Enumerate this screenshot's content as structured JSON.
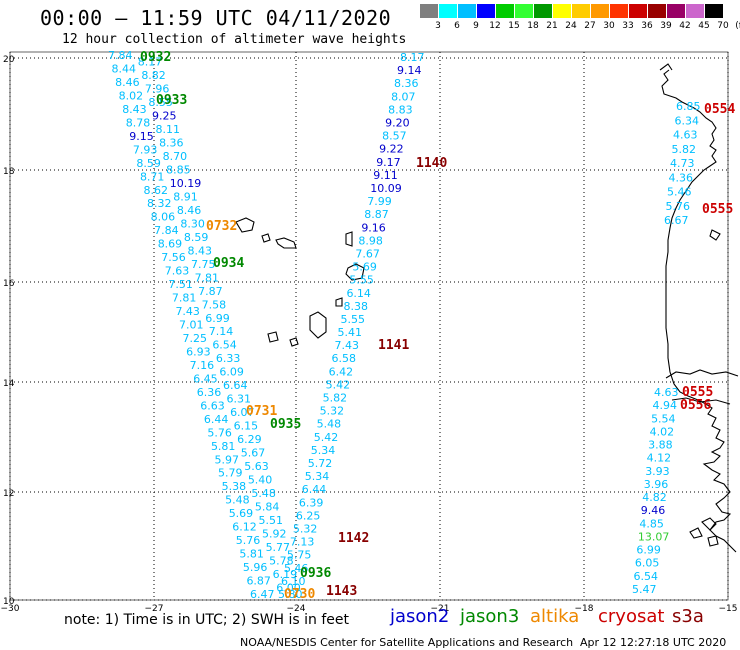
{
  "header": {
    "title": "00:00 – 11:59 UTC 04/11/2020",
    "subtitle": "12 hour collection of altimeter wave heights"
  },
  "colorbar": {
    "labels": [
      "3",
      "6",
      "9",
      "12",
      "15",
      "18",
      "21",
      "24",
      "27",
      "30",
      "33",
      "36",
      "39",
      "42",
      "45",
      "70",
      "(ft)"
    ],
    "colors": [
      "#7f7f7f",
      "#00ffff",
      "#00bfff",
      "#0000ff",
      "#00cc00",
      "#33ff33",
      "#009900",
      "#ffff00",
      "#ffcc00",
      "#ff9900",
      "#ff3300",
      "#cc0000",
      "#990000",
      "#990066",
      "#cc66cc",
      "#000000"
    ]
  },
  "axes": {
    "lat_labels": [
      "20",
      "18",
      "16",
      "14",
      "12",
      "10"
    ],
    "lon_labels": [
      "−30",
      "−27",
      "−24",
      "−21",
      "−18",
      "−15"
    ]
  },
  "colors": {
    "jason2": "#0000cc",
    "jason3": "#008800",
    "altika": "#ee8800",
    "cryosat": "#cc0000",
    "s3a": "#880000",
    "cyan": "#00bfff",
    "dark_red": "#880000"
  },
  "tracks": {
    "A": [
      "7.84",
      "8.17",
      "8.44",
      "8.82",
      "8.46",
      "7.96",
      "8.02",
      "8.55",
      "8.43",
      "9.25",
      "8.78",
      "8.11",
      "9.15",
      "8.36",
      "7.93",
      "8.70",
      "8.59",
      "8.85",
      "8.71",
      "10.19",
      "8.62",
      "8.91",
      "8.32",
      "8.46",
      "8.06",
      "8.30",
      "7.84",
      "8.59",
      "8.69",
      "8.43",
      "7.56",
      "7.75",
      "7.63",
      "7.81",
      "7.51",
      "7.87",
      "7.81",
      "7.58",
      "7.43",
      "6.99",
      "7.01",
      "7.14",
      "7.25",
      "6.54",
      "6.93",
      "6.33",
      "7.16",
      "6.09",
      "6.45",
      "6.64",
      "6.36",
      "6.31",
      "6.63",
      "6.07",
      "6.44",
      "6.15",
      "5.76",
      "6.29",
      "5.81",
      "5.67",
      "5.97",
      "5.63",
      "5.79",
      "5.40",
      "5.38",
      "5.48",
      "5.48",
      "5.84",
      "5.69",
      "5.51",
      "6.12",
      "5.92",
      "5.76",
      "5.77",
      "5.81",
      "5.78",
      "5.96",
      "6.19",
      "6.87",
      "6.00",
      "6.47"
    ],
    "B": [
      "8.17",
      "9.14",
      "8.36",
      "8.07",
      "8.83",
      "9.20",
      "8.57",
      "9.22",
      "9.17",
      "9.11",
      "10.09",
      "7.99",
      "8.87",
      "9.16",
      "8.98",
      "7.67",
      "5.69",
      "5.55",
      "6.14",
      "8.38",
      "5.55",
      "5.41",
      "7.43",
      "6.58",
      "6.42",
      "5.42",
      "5.82",
      "5.32",
      "5.48",
      "5.42",
      "5.34",
      "5.72",
      "5.34",
      "6.44",
      "6.39",
      "6.25",
      "5.32",
      "7.13",
      "5.75",
      "5.46",
      "6.10",
      "5.80"
    ],
    "C": [
      "6.85",
      "6.34",
      "4.63",
      "5.82",
      "4.73",
      "4.36",
      "5.46",
      "5.76",
      "6.67"
    ],
    "D": [
      "4.63",
      "4.94",
      "5.54",
      "4.02",
      "3.88",
      "4.12",
      "3.93",
      "3.96",
      "4.82",
      "9.46",
      "4.85",
      "13.07",
      "6.99",
      "6.05",
      "6.54",
      "5.47"
    ]
  },
  "pass_labels": [
    {
      "text": "0932",
      "sat": "jason3"
    },
    {
      "text": "0933",
      "sat": "jason3"
    },
    {
      "text": "0732",
      "sat": "altika"
    },
    {
      "text": "0934",
      "sat": "jason3"
    },
    {
      "text": "0731",
      "sat": "altika"
    },
    {
      "text": "0935",
      "sat": "jason3"
    },
    {
      "text": "0936",
      "sat": "jason3"
    },
    {
      "text": "0730",
      "sat": "altika"
    },
    {
      "text": "1140",
      "sat": "s3a"
    },
    {
      "text": "1141",
      "sat": "s3a"
    },
    {
      "text": "1142",
      "sat": "s3a"
    },
    {
      "text": "1143",
      "sat": "s3a"
    },
    {
      "text": "0554",
      "sat": "cryosat"
    },
    {
      "text": "0555",
      "sat": "cryosat"
    },
    {
      "text": "0555",
      "sat": "cryosat"
    },
    {
      "text": "0556",
      "sat": "cryosat"
    }
  ],
  "footer": {
    "note": "note: 1) Time is in UTC; 2) SWH is in feet",
    "legend": [
      "jason2",
      "jason3",
      "altika",
      "cryosat",
      "s3a"
    ],
    "credit": "NOAA/NESDIS Center for Satellite Applications and Research",
    "timestamp": "Apr 12 12:27:18 UTC 2020"
  }
}
